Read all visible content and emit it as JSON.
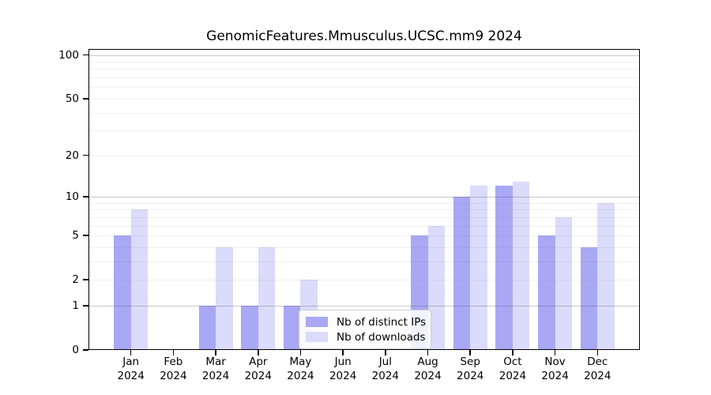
{
  "chart_data": {
    "type": "bar",
    "title": "GenomicFeatures.Mmusculus.UCSC.mm9 2024",
    "months": [
      "Jan",
      "Feb",
      "Mar",
      "Apr",
      "May",
      "Jun",
      "Jul",
      "Aug",
      "Sep",
      "Oct",
      "Nov",
      "Dec"
    ],
    "year": "2024",
    "series": [
      {
        "name": "Nb of distinct IPs",
        "color": "#a8a8f5",
        "values": [
          5,
          0,
          1,
          1,
          1,
          0,
          0,
          5,
          10,
          12,
          5,
          4
        ]
      },
      {
        "name": "Nb of downloads",
        "color": "#dbdbfb",
        "values": [
          8,
          0,
          4,
          4,
          2,
          0,
          0,
          6,
          12,
          13,
          7,
          9
        ]
      }
    ],
    "yticks": [
      0,
      1,
      2,
      5,
      10,
      20,
      50,
      100
    ],
    "ylim": [
      0,
      110
    ],
    "yscale": "log1p",
    "grid": true,
    "grid_major_values": [
      1,
      10,
      100
    ],
    "grid_minor_values": [
      2,
      3,
      4,
      5,
      6,
      7,
      8,
      9,
      20,
      30,
      40,
      50,
      60,
      70,
      80,
      90
    ],
    "grid_major_color": "rgba(60,60,60,0.28)",
    "grid_minor_color": "rgba(120,120,120,0.10)",
    "axis_color": "#000000",
    "legend_position": "lower center"
  }
}
